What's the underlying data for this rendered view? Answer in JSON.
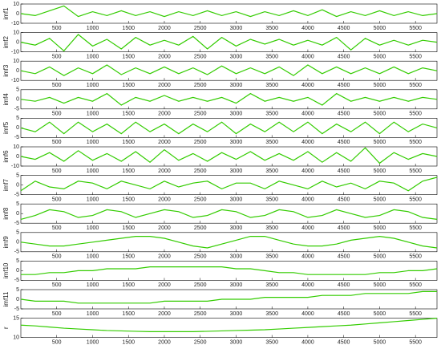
{
  "chart_data": [
    {
      "type": "line",
      "ylabel": "imf1",
      "color": "#33cc00",
      "xlim": [
        0,
        5800
      ],
      "xticks": [
        500,
        1000,
        1500,
        2000,
        2500,
        3000,
        3500,
        4000,
        4500,
        5000,
        5500
      ],
      "ylim": [
        -10,
        10
      ],
      "yticks": [
        -10,
        0,
        10
      ],
      "x": [
        0,
        200,
        400,
        600,
        800,
        1000,
        1200,
        1400,
        1600,
        1800,
        2000,
        2200,
        2400,
        2600,
        2800,
        3000,
        3200,
        3400,
        3600,
        3800,
        4000,
        4200,
        4400,
        4600,
        4800,
        5000,
        5200,
        5400,
        5600,
        5800
      ],
      "values": [
        0,
        -2,
        3,
        8,
        -3,
        2,
        -2,
        3,
        -2,
        2,
        -3,
        2,
        -2,
        3,
        -2,
        2,
        -3,
        2,
        -2,
        3,
        -2,
        4,
        -3,
        2,
        -2,
        3,
        -2,
        2,
        -2,
        0
      ]
    },
    {
      "type": "line",
      "ylabel": "imf2",
      "color": "#33cc00",
      "xlim": [
        0,
        5800
      ],
      "xticks": [
        500,
        1000,
        1500,
        2000,
        2500,
        3000,
        3500,
        4000,
        4500,
        5000,
        5500
      ],
      "ylim": [
        -10,
        10
      ],
      "yticks": [
        -10,
        0,
        10
      ],
      "x": [
        0,
        200,
        400,
        600,
        800,
        1000,
        1200,
        1400,
        1600,
        1800,
        2000,
        2200,
        2400,
        2600,
        2800,
        3000,
        3200,
        3400,
        3600,
        3800,
        4000,
        4200,
        4400,
        4600,
        4800,
        5000,
        5200,
        5400,
        5600,
        5800
      ],
      "values": [
        0,
        -3,
        4,
        -9,
        8,
        -4,
        3,
        -7,
        5,
        -3,
        2,
        -3,
        6,
        -7,
        5,
        -4,
        3,
        -2,
        3,
        -3,
        2,
        -3,
        5,
        -8,
        4,
        -3,
        2,
        -3,
        2,
        0
      ]
    },
    {
      "type": "line",
      "ylabel": "imf3",
      "color": "#33cc00",
      "xlim": [
        0,
        5800
      ],
      "xticks": [
        500,
        1000,
        1500,
        2000,
        2500,
        3000,
        3500,
        4000,
        4500,
        5000,
        5500
      ],
      "ylim": [
        -10,
        10
      ],
      "yticks": [
        -10,
        0,
        10
      ],
      "x": [
        0,
        200,
        400,
        600,
        800,
        1000,
        1200,
        1400,
        1600,
        1800,
        2000,
        2200,
        2400,
        2600,
        2800,
        3000,
        3200,
        3400,
        3600,
        3800,
        4000,
        4200,
        4400,
        4600,
        4800,
        5000,
        5200,
        5400,
        5600,
        5800
      ],
      "values": [
        0,
        -3,
        4,
        -5,
        3,
        -3,
        6,
        -4,
        3,
        -3,
        4,
        -3,
        3,
        -4,
        5,
        -3,
        3,
        -3,
        4,
        -5,
        6,
        -3,
        4,
        -3,
        3,
        -3,
        4,
        -3,
        3,
        0
      ]
    },
    {
      "type": "line",
      "ylabel": "imf4",
      "color": "#33cc00",
      "xlim": [
        0,
        5800
      ],
      "xticks": [
        500,
        1000,
        1500,
        2000,
        2500,
        3000,
        3500,
        4000,
        4500,
        5000,
        5500
      ],
      "ylim": [
        -5,
        5
      ],
      "yticks": [
        -5,
        0,
        5
      ],
      "x": [
        0,
        200,
        400,
        600,
        800,
        1000,
        1200,
        1400,
        1600,
        1800,
        2000,
        2200,
        2400,
        2600,
        2800,
        3000,
        3200,
        3400,
        3600,
        3800,
        4000,
        4200,
        4400,
        4600,
        4800,
        5000,
        5200,
        5400,
        5600,
        5800
      ],
      "values": [
        0,
        -1,
        1,
        -2,
        1,
        -1,
        3,
        -3,
        1,
        -1,
        2,
        -1,
        1,
        -1,
        1,
        -2,
        3,
        -1,
        1,
        -1,
        1,
        -3,
        3,
        -1,
        1,
        -1,
        1,
        -1,
        1,
        0
      ]
    },
    {
      "type": "line",
      "ylabel": "imf5",
      "color": "#33cc00",
      "xlim": [
        0,
        5800
      ],
      "xticks": [
        500,
        1000,
        1500,
        2000,
        2500,
        3000,
        3500,
        4000,
        4500,
        5000,
        5500
      ],
      "ylim": [
        -5,
        5
      ],
      "yticks": [
        -5,
        0,
        5
      ],
      "x": [
        0,
        200,
        400,
        600,
        800,
        1000,
        1200,
        1400,
        1600,
        1800,
        2000,
        2200,
        2400,
        2600,
        2800,
        3000,
        3200,
        3400,
        3600,
        3800,
        4000,
        4200,
        4400,
        4600,
        4800,
        5000,
        5200,
        5400,
        5600,
        5800
      ],
      "values": [
        0,
        -2,
        3,
        -3,
        3,
        -2,
        2,
        -3,
        3,
        -2,
        2,
        -3,
        2,
        -2,
        3,
        -3,
        2,
        -2,
        3,
        -2,
        3,
        -3,
        2,
        -2,
        3,
        -3,
        3,
        -2,
        2,
        0
      ]
    },
    {
      "type": "line",
      "ylabel": "imf6",
      "color": "#33cc00",
      "xlim": [
        0,
        5800
      ],
      "xticks": [
        500,
        1000,
        1500,
        2000,
        2500,
        3000,
        3500,
        4000,
        4500,
        5000,
        5500
      ],
      "ylim": [
        -10,
        10
      ],
      "yticks": [
        -10,
        0,
        10
      ],
      "x": [
        0,
        200,
        400,
        600,
        800,
        1000,
        1200,
        1400,
        1600,
        1800,
        2000,
        2200,
        2400,
        2600,
        2800,
        3000,
        3200,
        3400,
        3600,
        3800,
        4000,
        4200,
        4400,
        4600,
        4800,
        5000,
        5200,
        5400,
        5600,
        5800
      ],
      "values": [
        0,
        -3,
        4,
        -5,
        6,
        -4,
        3,
        -5,
        5,
        -6,
        7,
        -4,
        3,
        -5,
        4,
        -3,
        5,
        -4,
        3,
        -4,
        5,
        -6,
        4,
        -5,
        9,
        -7,
        4,
        -3,
        3,
        0
      ]
    },
    {
      "type": "line",
      "ylabel": "imf7",
      "color": "#33cc00",
      "xlim": [
        0,
        5800
      ],
      "xticks": [
        500,
        1000,
        1500,
        2000,
        2500,
        3000,
        3500,
        4000,
        4500,
        5000,
        5500
      ],
      "ylim": [
        -5,
        5
      ],
      "yticks": [
        -5,
        0,
        5
      ],
      "x": [
        0,
        200,
        400,
        600,
        800,
        1000,
        1200,
        1400,
        1600,
        1800,
        2000,
        2200,
        2400,
        2600,
        2800,
        3000,
        3200,
        3400,
        3600,
        3800,
        4000,
        4200,
        4400,
        4600,
        4800,
        5000,
        5200,
        5400,
        5600,
        5800
      ],
      "values": [
        -3,
        2,
        -1,
        -2,
        2,
        1,
        -2,
        2,
        0,
        -2,
        2,
        -1,
        1,
        2,
        -2,
        1,
        1,
        -2,
        2,
        0,
        -2,
        2,
        -1,
        1,
        -2,
        2,
        1,
        -3,
        2,
        4
      ]
    },
    {
      "type": "line",
      "ylabel": "imf8",
      "color": "#33cc00",
      "xlim": [
        0,
        5800
      ],
      "xticks": [
        500,
        1000,
        1500,
        2000,
        2500,
        3000,
        3500,
        4000,
        4500,
        5000,
        5500
      ],
      "ylim": [
        -5,
        5
      ],
      "yticks": [
        -5,
        0,
        5
      ],
      "x": [
        0,
        200,
        400,
        600,
        800,
        1000,
        1200,
        1400,
        1600,
        1800,
        2000,
        2200,
        2400,
        2600,
        2800,
        3000,
        3200,
        3400,
        3600,
        3800,
        4000,
        4200,
        4400,
        4600,
        4800,
        5000,
        5200,
        5400,
        5600,
        5800
      ],
      "values": [
        -3,
        -1,
        2,
        1,
        -2,
        -1,
        2,
        1,
        -2,
        0,
        2,
        1,
        -2,
        -1,
        2,
        1,
        -2,
        -1,
        2,
        1,
        -2,
        -1,
        2,
        0,
        -2,
        -1,
        2,
        1,
        -2,
        -3
      ]
    },
    {
      "type": "line",
      "ylabel": "imf9",
      "color": "#33cc00",
      "xlim": [
        0,
        5800
      ],
      "xticks": [
        500,
        1000,
        1500,
        2000,
        2500,
        3000,
        3500,
        4000,
        4500,
        5000,
        5500
      ],
      "ylim": [
        -5,
        5
      ],
      "yticks": [
        -5,
        0,
        5
      ],
      "x": [
        0,
        200,
        400,
        600,
        800,
        1000,
        1200,
        1400,
        1600,
        1800,
        2000,
        2200,
        2400,
        2600,
        2800,
        3000,
        3200,
        3400,
        3600,
        3800,
        4000,
        4200,
        4400,
        4600,
        4800,
        5000,
        5200,
        5400,
        5600,
        5800
      ],
      "values": [
        0,
        -1,
        -2,
        -2,
        -1,
        0,
        1,
        2,
        3,
        3,
        2,
        0,
        -2,
        -3,
        -1,
        1,
        3,
        3,
        1,
        -1,
        -2,
        -2,
        -1,
        1,
        2,
        3,
        2,
        0,
        -2,
        -3
      ]
    },
    {
      "type": "line",
      "ylabel": "imf10",
      "color": "#33cc00",
      "xlim": [
        0,
        5800
      ],
      "xticks": [
        500,
        1000,
        1500,
        2000,
        2500,
        3000,
        3500,
        4000,
        4500,
        5000,
        5500
      ],
      "ylim": [
        -5,
        5
      ],
      "yticks": [
        -5,
        0,
        5
      ],
      "x": [
        0,
        200,
        400,
        600,
        800,
        1000,
        1200,
        1400,
        1600,
        1800,
        2000,
        2200,
        2400,
        2600,
        2800,
        3000,
        3200,
        3400,
        3600,
        3800,
        4000,
        4200,
        4400,
        4600,
        4800,
        5000,
        5200,
        5400,
        5600,
        5800
      ],
      "values": [
        -2,
        -2,
        -1,
        -1,
        0,
        0,
        1,
        1,
        1,
        2,
        2,
        2,
        2,
        2,
        2,
        1,
        1,
        0,
        -1,
        -1,
        -2,
        -2,
        -2,
        -2,
        -2,
        -1,
        -1,
        0,
        0,
        1
      ]
    },
    {
      "type": "line",
      "ylabel": "imf11",
      "color": "#33cc00",
      "xlim": [
        0,
        5800
      ],
      "xticks": [
        500,
        1000,
        1500,
        2000,
        2500,
        3000,
        3500,
        4000,
        4500,
        5000,
        5500
      ],
      "ylim": [
        -5,
        5
      ],
      "yticks": [
        -5,
        0,
        5
      ],
      "x": [
        0,
        200,
        400,
        600,
        800,
        1000,
        1200,
        1400,
        1600,
        1800,
        2000,
        2200,
        2400,
        2600,
        2800,
        3000,
        3200,
        3400,
        3600,
        3800,
        4000,
        4200,
        4400,
        4600,
        4800,
        5000,
        5200,
        5400,
        5600,
        5800
      ],
      "values": [
        0,
        -1,
        -1,
        -1,
        -2,
        -2,
        -2,
        -2,
        -2,
        -2,
        -1,
        -1,
        -1,
        -1,
        0,
        0,
        0,
        1,
        1,
        1,
        1,
        2,
        2,
        2,
        3,
        3,
        3,
        3,
        4,
        4
      ]
    },
    {
      "type": "line",
      "ylabel": "r",
      "color": "#33cc00",
      "xlim": [
        0,
        5800
      ],
      "xticks": [
        500,
        1000,
        1500,
        2000,
        2500,
        3000,
        3500,
        4000,
        4500,
        5000,
        5500
      ],
      "ylim": [
        10,
        15
      ],
      "yticks": [
        10,
        15
      ],
      "x": [
        0,
        200,
        400,
        600,
        800,
        1000,
        1200,
        1400,
        1600,
        1800,
        2000,
        2200,
        2400,
        2600,
        2800,
        3000,
        3200,
        3400,
        3600,
        3800,
        4000,
        4200,
        4400,
        4600,
        4800,
        5000,
        5200,
        5400,
        5600,
        5800
      ],
      "values": [
        13.2,
        13,
        12.7,
        12.4,
        12.2,
        12,
        11.8,
        11.7,
        11.6,
        11.5,
        11.5,
        11.5,
        11.5,
        11.6,
        11.7,
        11.8,
        11.9,
        12,
        12.2,
        12.4,
        12.6,
        12.8,
        13,
        13.2,
        13.5,
        13.8,
        14.1,
        14.4,
        14.7,
        15
      ]
    }
  ]
}
